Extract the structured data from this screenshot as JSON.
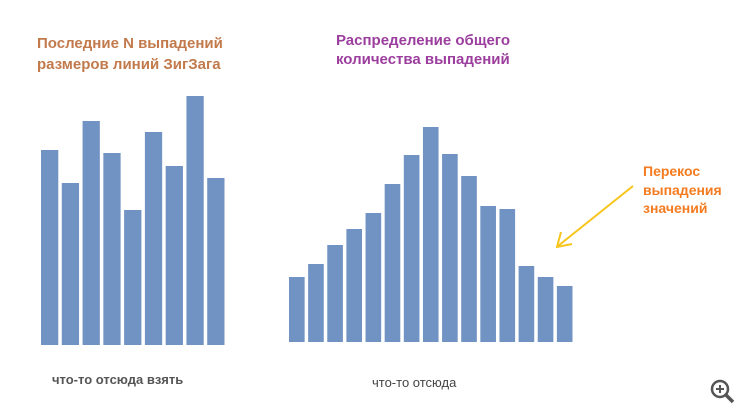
{
  "chart_data": [
    {
      "type": "bar",
      "title": [
        "Последние N выпадений",
        "размеров линий ЗигЗага"
      ],
      "x_label": "что-то отсюда взять",
      "values": [
        195,
        162,
        224,
        192,
        135,
        213,
        179,
        249,
        167
      ],
      "color": "#7093c3",
      "ylim": [
        0,
        250
      ]
    },
    {
      "type": "bar",
      "title": [
        "Распределение общего",
        "количества выпадений"
      ],
      "x_label": "что-то отсюда",
      "values": [
        65,
        78,
        97,
        113,
        129,
        158,
        187,
        215,
        188,
        166,
        136,
        133,
        76,
        65,
        56
      ],
      "color": "#7093c3",
      "ylim": [
        0,
        250
      ],
      "annotation": [
        "Перекос",
        "выпадения",
        "значений"
      ]
    }
  ]
}
